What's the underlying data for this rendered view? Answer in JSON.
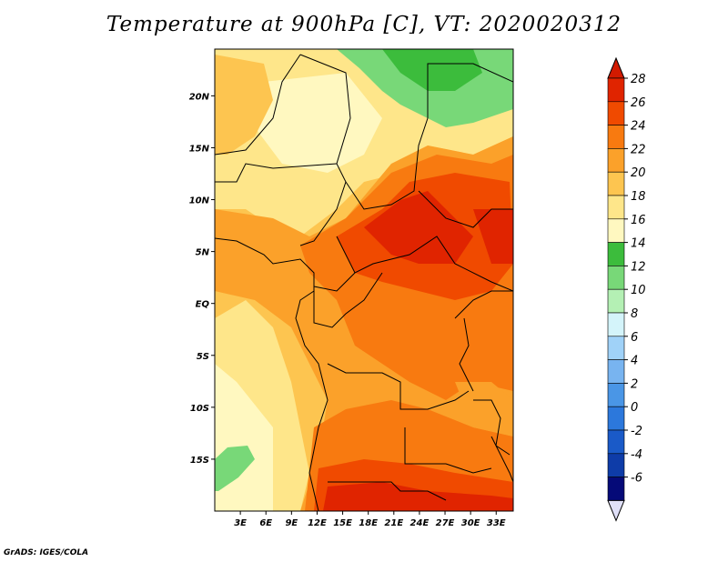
{
  "title": "Temperature at 900hPa [C], VT: 2020020312",
  "footer": "GrADS: IGES/COLA",
  "map": {
    "lat_labels": [
      "20N",
      "15N",
      "10N",
      "5N",
      "EQ",
      "5S",
      "10S",
      "15S"
    ],
    "lat_values": [
      20,
      15,
      10,
      5,
      0,
      -5,
      -10,
      -15
    ],
    "lon_labels": [
      "3E",
      "6E",
      "9E",
      "12E",
      "15E",
      "18E",
      "21E",
      "24E",
      "27E",
      "30E",
      "33E"
    ],
    "lon_values": [
      3,
      6,
      9,
      12,
      15,
      18,
      21,
      24,
      27,
      30,
      33
    ],
    "extent": {
      "lon_min": 0,
      "lon_max": 35,
      "lat_min": -20,
      "lat_max": 24.5
    }
  },
  "colorbar": {
    "levels": [
      "28",
      "26",
      "24",
      "22",
      "20",
      "18",
      "16",
      "14",
      "12",
      "10",
      "8",
      "6",
      "4",
      "2",
      "0",
      "-2",
      "-4",
      "-6"
    ],
    "colors": [
      "#e02400",
      "#f04a00",
      "#f87a10",
      "#fba12a",
      "#fdc550",
      "#fee68a",
      "#fff8c0",
      "#3cbc3c",
      "#78d878",
      "#b4f0b4",
      "#d4f4fa",
      "#a0d2f8",
      "#78b4f0",
      "#4a96e6",
      "#2c78dc",
      "#1a5ac8",
      "#0e3ca8",
      "#050a78"
    ],
    "top_color": "#d21a00",
    "bottom_color": "#e0e0f8"
  }
}
